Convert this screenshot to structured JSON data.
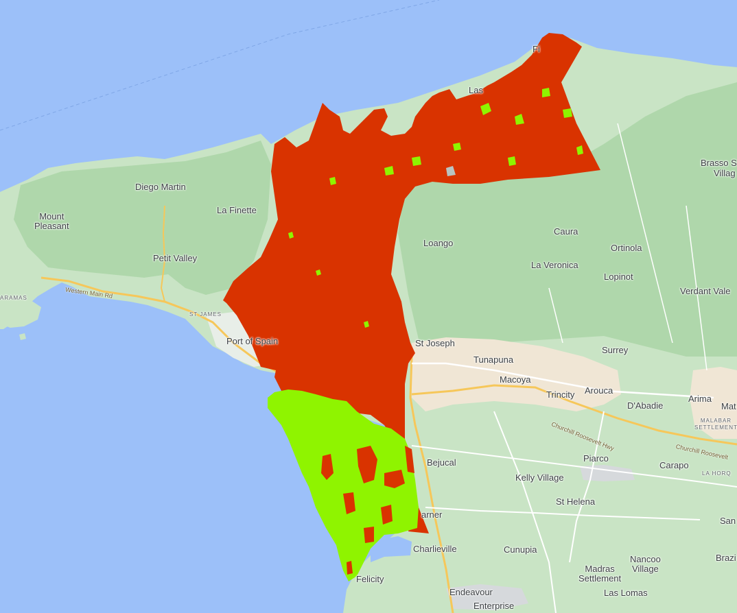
{
  "map": {
    "colors": {
      "water": "#9cc0f9",
      "land": "#c9e4c5",
      "hills": "#a9d3a4",
      "urban": "#f0e6d5",
      "highway": "#f6c75a",
      "overlay_red": "#d93300",
      "overlay_green": "#8ff400"
    },
    "places": {
      "fi": "Fi",
      "las": "Las",
      "brasso_seco": "Brasso S",
      "brasso_village": "Villag",
      "diego_martin": "Diego Martin",
      "la_finette": "La Finette",
      "mount_pleasant": "Mount\nPleasant",
      "petit_valley": "Petit Valley",
      "caramas": "ARAMAS",
      "st_james": "ST JAMES",
      "port_of_spain": "Port of Spain",
      "loango": "Loango",
      "caura": "Caura",
      "ortinola": "Ortinola",
      "la_veronica": "La Veronica",
      "lopinot": "Lopinot",
      "verdant_vale": "Verdant Vale",
      "st_joseph": "St Joseph",
      "tunapuna": "Tunapuna",
      "macoya": "Macoya",
      "trincity": "Trincity",
      "arouca": "Arouca",
      "surrey": "Surrey",
      "arima": "Arima",
      "mat": "Mat",
      "dabadie": "D'Abadie",
      "malabar": "MALABAR\nSETTLEMENT",
      "piarco": "Piarco",
      "carapo": "Carapo",
      "la_horquetta": "LA HORQ",
      "bejucal": "Bejucal",
      "kelly_village": "Kelly Village",
      "st_helena": "St Helena",
      "san": "San",
      "carner": "arner",
      "charlieville": "Charlieville",
      "cunupia": "Cunupia",
      "nancoo_village": "Nancoo\nVillage",
      "brazil": "Brazi",
      "madras_settlement": "Madras\nSettlement",
      "las_lomas": "Las Lomas",
      "felicity": "Felicity",
      "endeavour": "Endeavour",
      "enterprise": "Enterprise"
    },
    "roads": {
      "western_main_rd": "Western Main Rd",
      "churchill_roosevelt_hwy": "Churchill Roosevelt Hwy",
      "churchill_roosevelt_2": "Churchill Roosevelt"
    }
  }
}
